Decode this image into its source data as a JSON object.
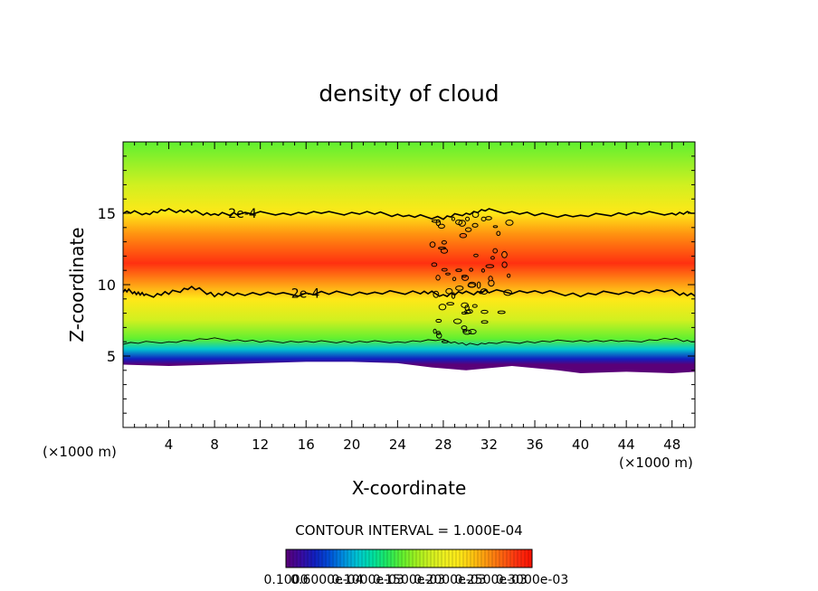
{
  "chart_data": {
    "type": "heatmap",
    "title": "density of cloud",
    "xlabel": "X-coordinate",
    "ylabel": "Z-coordinate",
    "x_unit": "(×1000 m)",
    "z_unit": "(×1000 m)",
    "xlim": [
      0,
      50
    ],
    "ylim": [
      0,
      20
    ],
    "x_ticks": [
      4,
      8,
      12,
      16,
      20,
      24,
      28,
      32,
      36,
      40,
      44,
      48
    ],
    "y_ticks": [
      5,
      10,
      15
    ],
    "contour_interval_text": "CONTOUR INTERVAL = 1.000E-04",
    "contour_labels": [
      "2e-4",
      "2e-4"
    ],
    "colorbar_labels": [
      "0.1000",
      "0.6000e-04",
      "0.1000e-03",
      "0.1500e-03",
      "0.2000e-03",
      "0.2500e-03",
      "0.3000e-03"
    ],
    "colorbar_colors": [
      "#5a0078",
      "#3a0aa0",
      "#1020c0",
      "#0050d8",
      "#0090e0",
      "#00c8d0",
      "#00e0a0",
      "#20e860",
      "#60f030",
      "#a0f020",
      "#d0f020",
      "#f0f020",
      "#ffe818",
      "#ffc010",
      "#ff9010",
      "#ff6010",
      "#ff3010",
      "#ff1000"
    ],
    "profile": [
      {
        "z": 4.4,
        "density": 0.0
      },
      {
        "z": 4.8,
        "density": 3e-05
      },
      {
        "z": 5.5,
        "density": 8e-05
      },
      {
        "z": 6.2,
        "density": 0.00012
      },
      {
        "z": 7.5,
        "density": 0.000155
      },
      {
        "z": 9.0,
        "density": 0.00019
      },
      {
        "z": 11.5,
        "density": 0.00024
      },
      {
        "z": 13.5,
        "density": 0.00022
      },
      {
        "z": 15.0,
        "density": 0.00019
      },
      {
        "z": 17.0,
        "density": 0.00015
      },
      {
        "z": 20.0,
        "density": 0.00012
      }
    ],
    "upper_contour_2e4": [
      [
        0,
        15.1
      ],
      [
        2,
        15.0
      ],
      [
        4,
        15.2
      ],
      [
        6,
        15.1
      ],
      [
        8,
        14.9
      ],
      [
        10,
        15.0
      ],
      [
        14,
        15.0
      ],
      [
        18,
        15.0
      ],
      [
        22,
        15.0
      ],
      [
        25,
        14.8
      ],
      [
        28,
        14.7
      ],
      [
        30,
        15.0
      ],
      [
        32,
        15.2
      ],
      [
        36,
        14.9
      ],
      [
        40,
        14.8
      ],
      [
        44,
        15.0
      ],
      [
        48,
        15.0
      ],
      [
        50,
        15.0
      ]
    ],
    "lower_contour_2e4": [
      [
        0,
        9.6
      ],
      [
        1,
        9.5
      ],
      [
        2,
        9.2
      ],
      [
        4,
        9.4
      ],
      [
        6,
        9.8
      ],
      [
        8,
        9.3
      ],
      [
        10,
        9.4
      ],
      [
        14,
        9.3
      ],
      [
        18,
        9.4
      ],
      [
        22,
        9.4
      ],
      [
        26,
        9.5
      ],
      [
        28,
        9.3
      ],
      [
        30,
        9.4
      ],
      [
        32,
        9.5
      ],
      [
        36,
        9.5
      ],
      [
        40,
        9.3
      ],
      [
        44,
        9.5
      ],
      [
        48,
        9.5
      ],
      [
        50,
        9.2
      ]
    ],
    "lower_contour_1e4": [
      [
        0,
        5.9
      ],
      [
        4,
        6.0
      ],
      [
        8,
        6.2
      ],
      [
        12,
        6.0
      ],
      [
        16,
        6.0
      ],
      [
        20,
        6.0
      ],
      [
        24,
        6.0
      ],
      [
        28,
        6.1
      ],
      [
        30,
        5.8
      ],
      [
        32,
        5.9
      ],
      [
        36,
        6.0
      ],
      [
        40,
        6.1
      ],
      [
        44,
        6.0
      ],
      [
        48,
        6.2
      ],
      [
        50,
        6.0
      ]
    ],
    "cloud_base": [
      [
        0,
        4.4
      ],
      [
        4,
        4.3
      ],
      [
        8,
        4.4
      ],
      [
        12,
        4.5
      ],
      [
        16,
        4.6
      ],
      [
        20,
        4.6
      ],
      [
        24,
        4.5
      ],
      [
        27,
        4.2
      ],
      [
        30,
        4.0
      ],
      [
        34,
        4.3
      ],
      [
        38,
        4.0
      ],
      [
        40,
        3.8
      ],
      [
        44,
        3.9
      ],
      [
        48,
        3.8
      ],
      [
        50,
        3.9
      ]
    ]
  }
}
